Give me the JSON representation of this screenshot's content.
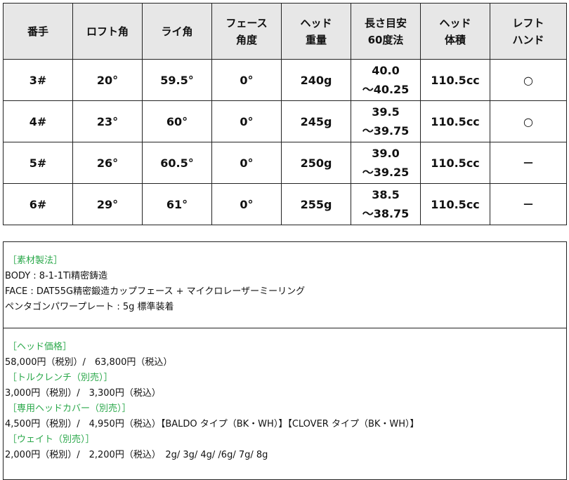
{
  "table": {
    "headers": [
      [
        "番手"
      ],
      [
        "ロフト角"
      ],
      [
        "ライ角"
      ],
      [
        "フェース",
        "角度"
      ],
      [
        "ヘッド",
        "重量"
      ],
      [
        "長さ目安",
        "60度法"
      ],
      [
        "ヘッド",
        "体積"
      ],
      [
        "レフト",
        "ハンド"
      ]
    ],
    "rows": [
      {
        "club": "3#",
        "loft": "20°",
        "lie": "59.5°",
        "face": "0°",
        "weight": "240g",
        "length": [
          "40.0",
          "～40.25"
        ],
        "volume": "110.5cc",
        "left": "○"
      },
      {
        "club": "4#",
        "loft": "23°",
        "lie": "60°",
        "face": "0°",
        "weight": "245g",
        "length": [
          "39.5",
          "～39.75"
        ],
        "volume": "110.5cc",
        "left": "○"
      },
      {
        "club": "5#",
        "loft": "26°",
        "lie": "60.5°",
        "face": "0°",
        "weight": "250g",
        "length": [
          "39.0",
          "～39.25"
        ],
        "volume": "110.5cc",
        "left": "－"
      },
      {
        "club": "6#",
        "loft": "29°",
        "lie": "61°",
        "face": "0°",
        "weight": "255g",
        "length": [
          "38.5",
          "～38.75"
        ],
        "volume": "110.5cc",
        "left": "－"
      }
    ]
  },
  "materials": {
    "heading": "［素材製法］",
    "lines": [
      "BODY : 8-1-1Ti精密鋳造",
      "FACE : DAT55G精密鍛造カップフェース + マイクロレーザーミーリング",
      "ペンタゴンパワープレート : 5g 標準装着"
    ]
  },
  "prices": [
    {
      "heading": "［ヘッド価格］",
      "text": "58,000円（税別）/　63,800円（税込）"
    },
    {
      "heading": "［トルクレンチ（別売）］",
      "text": "3,000円（税別）/　3,300円（税込）"
    },
    {
      "heading": "［専用ヘッドカバー（別売）］",
      "text": "4,500円（税別）/　4,950円（税込）【BALDO タイプ（BK・WH）】【CLOVER タイプ（BK・WH）】"
    },
    {
      "heading": "［ウェイト（別売）］",
      "text": "2,000円（税別）/　2,200円（税込）　2g/ 3g/ 4g/ /6g/ 7g/ 8g"
    }
  ],
  "colors": {
    "heading_green": "#2aa84a",
    "header_bg": "#e7e7e7"
  }
}
